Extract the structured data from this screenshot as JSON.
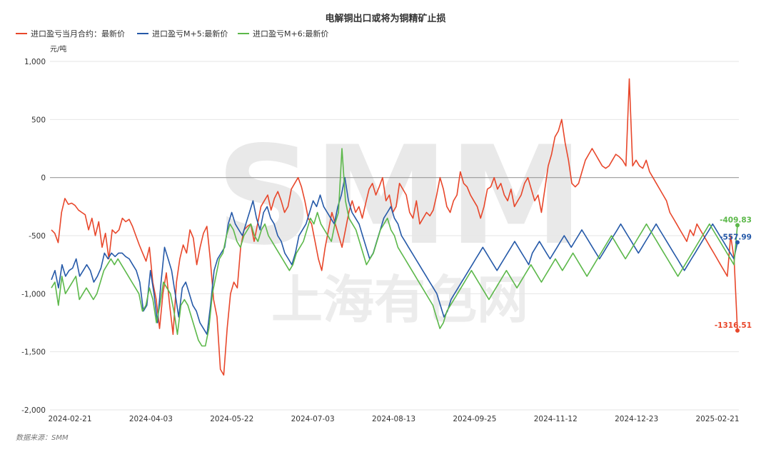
{
  "chart_data": {
    "type": "line",
    "title": "电解铜出口或将为铜精矿止损",
    "ylabel": "元/吨",
    "ylim": [
      -2000,
      1000
    ],
    "yticks": [
      "1,000",
      "500",
      "0",
      "-500",
      "-1,000",
      "-1,500",
      "-2,000"
    ],
    "ytick_values": [
      1000,
      500,
      0,
      -500,
      -1000,
      -1500,
      -2000
    ],
    "xticks": [
      "2024-02-21",
      "2024-04-03",
      "2024-05-22",
      "2024-07-03",
      "2024-08-13",
      "2024-09-25",
      "2024-11-12",
      "2024-12-23",
      "2025-02-21"
    ],
    "source": "数据来源：SMM",
    "watermark": "SMM",
    "watermark_cn": "上海有色网",
    "grid": true,
    "legend_position": "top-left",
    "series": [
      {
        "name": "进口盈亏当月合约：最新价",
        "color": "#e8472b",
        "end_label": "-1316.51",
        "values": [
          -450,
          -480,
          -560,
          -300,
          -180,
          -230,
          -220,
          -240,
          -280,
          -300,
          -320,
          -450,
          -350,
          -500,
          -380,
          -600,
          -480,
          -700,
          -450,
          -480,
          -450,
          -350,
          -380,
          -360,
          -420,
          -500,
          -580,
          -650,
          -720,
          -600,
          -900,
          -1050,
          -1300,
          -1000,
          -820,
          -1100,
          -1350,
          -900,
          -700,
          -580,
          -650,
          -450,
          -520,
          -750,
          -600,
          -480,
          -420,
          -700,
          -1050,
          -1200,
          -1650,
          -1700,
          -1300,
          -1000,
          -900,
          -950,
          -600,
          -450,
          -420,
          -400,
          -550,
          -400,
          -250,
          -200,
          -150,
          -280,
          -180,
          -120,
          -200,
          -300,
          -250,
          -100,
          -50,
          0,
          -80,
          -200,
          -350,
          -400,
          -550,
          -700,
          -800,
          -600,
          -450,
          -300,
          -400,
          -500,
          -600,
          -450,
          -300,
          -200,
          -300,
          -250,
          -350,
          -220,
          -100,
          -50,
          -150,
          -80,
          0,
          -200,
          -150,
          -300,
          -250,
          -50,
          -100,
          -150,
          -300,
          -350,
          -200,
          -400,
          -350,
          -300,
          -330,
          -280,
          -150,
          0,
          -100,
          -250,
          -300,
          -200,
          -150,
          50,
          -50,
          -80,
          -150,
          -200,
          -250,
          -350,
          -250,
          -100,
          -80,
          0,
          -100,
          -50,
          -150,
          -200,
          -100,
          -250,
          -200,
          -150,
          -50,
          0,
          -100,
          -200,
          -150,
          -300,
          -100,
          100,
          200,
          350,
          400,
          500,
          300,
          150,
          -50,
          -80,
          -50,
          50,
          150,
          200,
          250,
          200,
          150,
          100,
          80,
          100,
          150,
          200,
          180,
          150,
          100,
          850,
          100,
          150,
          100,
          80,
          150,
          50,
          0,
          -50,
          -100,
          -150,
          -200,
          -300,
          -350,
          -400,
          -450,
          -500,
          -550,
          -450,
          -500,
          -400,
          -450,
          -500,
          -550,
          -600,
          -650,
          -700,
          -750,
          -800,
          -850,
          -500,
          -700,
          -1316.51
        ]
      },
      {
        "name": "进口盈亏M+5:最新价",
        "color": "#2559a8",
        "end_label": "-557.99",
        "values": [
          -880,
          -800,
          -950,
          -750,
          -850,
          -800,
          -780,
          -700,
          -850,
          -800,
          -750,
          -800,
          -900,
          -850,
          -780,
          -650,
          -700,
          -650,
          -680,
          -650,
          -650,
          -680,
          -700,
          -750,
          -800,
          -900,
          -1150,
          -1100,
          -800,
          -1000,
          -1250,
          -900,
          -600,
          -700,
          -800,
          -1000,
          -1200,
          -950,
          -900,
          -1000,
          -1100,
          -1150,
          -1250,
          -1300,
          -1350,
          -1100,
          -800,
          -700,
          -650,
          -600,
          -400,
          -300,
          -400,
          -450,
          -500,
          -400,
          -300,
          -200,
          -350,
          -450,
          -300,
          -250,
          -350,
          -400,
          -500,
          -550,
          -650,
          -700,
          -750,
          -650,
          -500,
          -450,
          -400,
          -300,
          -200,
          -250,
          -150,
          -250,
          -300,
          -350,
          -400,
          -250,
          -150,
          0,
          -200,
          -300,
          -350,
          -400,
          -500,
          -600,
          -700,
          -650,
          -550,
          -450,
          -350,
          -300,
          -250,
          -350,
          -400,
          -500,
          -550,
          -600,
          -650,
          -700,
          -750,
          -800,
          -850,
          -900,
          -950,
          -1000,
          -1100,
          -1200,
          -1150,
          -1050,
          -1000,
          -950,
          -900,
          -850,
          -800,
          -750,
          -700,
          -650,
          -600,
          -650,
          -700,
          -750,
          -800,
          -750,
          -700,
          -650,
          -600,
          -550,
          -600,
          -650,
          -700,
          -750,
          -650,
          -600,
          -550,
          -600,
          -650,
          -700,
          -650,
          -600,
          -550,
          -500,
          -550,
          -600,
          -550,
          -500,
          -450,
          -500,
          -550,
          -600,
          -650,
          -700,
          -650,
          -600,
          -550,
          -500,
          -450,
          -400,
          -450,
          -500,
          -550,
          -600,
          -650,
          -600,
          -550,
          -500,
          -450,
          -400,
          -450,
          -500,
          -550,
          -600,
          -650,
          -700,
          -750,
          -800,
          -750,
          -700,
          -650,
          -600,
          -550,
          -500,
          -450,
          -400,
          -450,
          -500,
          -550,
          -600,
          -650,
          -700,
          -557.99
        ]
      },
      {
        "name": "进口盈亏M+6:最新价",
        "color": "#5cb84a",
        "end_label": "-409.83",
        "values": [
          -950,
          -900,
          -1100,
          -850,
          -1000,
          -950,
          -900,
          -850,
          -1050,
          -1000,
          -950,
          -1000,
          -1050,
          -1000,
          -900,
          -800,
          -750,
          -700,
          -750,
          -700,
          -750,
          -800,
          -850,
          -900,
          -950,
          -1000,
          -1150,
          -1100,
          -950,
          -1050,
          -1250,
          -1100,
          -900,
          -950,
          -1000,
          -1150,
          -1350,
          -1100,
          -1050,
          -1100,
          -1200,
          -1300,
          -1400,
          -1450,
          -1450,
          -1300,
          -1000,
          -850,
          -700,
          -650,
          -500,
          -400,
          -450,
          -550,
          -600,
          -500,
          -450,
          -400,
          -500,
          -550,
          -450,
          -400,
          -500,
          -550,
          -600,
          -650,
          -700,
          -750,
          -800,
          -750,
          -650,
          -600,
          -550,
          -450,
          -350,
          -400,
          -300,
          -400,
          -450,
          -500,
          -550,
          -400,
          -300,
          250,
          -200,
          -350,
          -400,
          -450,
          -550,
          -650,
          -750,
          -700,
          -650,
          -550,
          -450,
          -400,
          -350,
          -450,
          -500,
          -600,
          -650,
          -700,
          -750,
          -800,
          -850,
          -900,
          -950,
          -1000,
          -1050,
          -1100,
          -1200,
          -1300,
          -1250,
          -1150,
          -1100,
          -1050,
          -1000,
          -950,
          -900,
          -850,
          -800,
          -850,
          -900,
          -950,
          -1000,
          -1050,
          -1000,
          -950,
          -900,
          -850,
          -800,
          -850,
          -900,
          -950,
          -900,
          -850,
          -800,
          -750,
          -800,
          -850,
          -900,
          -850,
          -800,
          -750,
          -700,
          -750,
          -800,
          -750,
          -700,
          -650,
          -700,
          -750,
          -800,
          -850,
          -800,
          -750,
          -700,
          -650,
          -600,
          -550,
          -500,
          -550,
          -600,
          -650,
          -700,
          -650,
          -600,
          -550,
          -500,
          -450,
          -400,
          -450,
          -500,
          -550,
          -600,
          -650,
          -700,
          -750,
          -800,
          -850,
          -800,
          -750,
          -700,
          -650,
          -600,
          -550,
          -500,
          -450,
          -400,
          -450,
          -500,
          -550,
          -600,
          -650,
          -700,
          -750,
          -409.83
        ]
      }
    ]
  }
}
